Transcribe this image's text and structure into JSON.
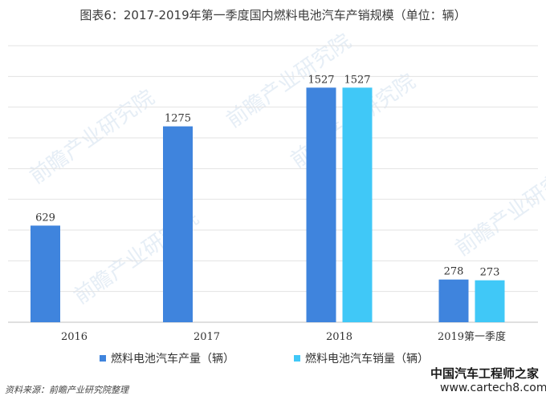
{
  "title": "图表6：2017-2019年第一季度国内燃料电池汽车产销规模（单位：辆）",
  "source": "资料来源：前瞻产业研究院整理",
  "watermark": {
    "brand": "前瞻产业研究院",
    "site_cn": "中国汽车工程师之家",
    "site_url": "www.cartech8.com"
  },
  "colors": {
    "production": "#3f84dd",
    "sales": "#40c8f7",
    "grid": "#e3e3e3",
    "axis": "#bfbfbf"
  },
  "chart_data": {
    "type": "bar",
    "categories": [
      "2016",
      "2017",
      "2018",
      "2019第一季度"
    ],
    "series": [
      {
        "name": "燃料电池汽车产量（辆）",
        "values": [
          629,
          1275,
          1527,
          278
        ],
        "labels": [
          "629",
          "1275",
          "1527",
          "278"
        ]
      },
      {
        "name": "燃料电池汽车销量（辆）",
        "values": [
          null,
          null,
          1527,
          273
        ],
        "labels": [
          "",
          "",
          "1527",
          "273"
        ]
      }
    ],
    "ylim": [
      0,
      1800
    ],
    "grid": true,
    "legend": "bottom"
  }
}
